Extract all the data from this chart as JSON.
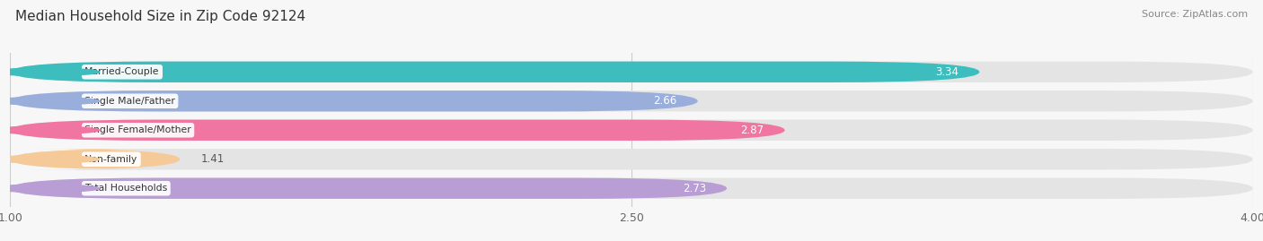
{
  "title": "Median Household Size in Zip Code 92124",
  "source": "Source: ZipAtlas.com",
  "categories": [
    "Married-Couple",
    "Single Male/Father",
    "Single Female/Mother",
    "Non-family",
    "Total Households"
  ],
  "values": [
    3.34,
    2.66,
    2.87,
    1.41,
    2.73
  ],
  "bar_colors": [
    "#3dbdbd",
    "#9aaedc",
    "#f075a0",
    "#f5ca98",
    "#b89ed4"
  ],
  "bar_bg_color": "#e4e4e4",
  "xlim": [
    1.0,
    4.0
  ],
  "xticks": [
    1.0,
    2.5,
    4.0
  ],
  "xtick_labels": [
    "1.00",
    "2.50",
    "4.00"
  ],
  "fig_bg_color": "#f7f7f7",
  "value_inside_threshold": 2.5,
  "value_label_colors_inside": "#ffffff",
  "value_label_colors_outside": "#555555"
}
